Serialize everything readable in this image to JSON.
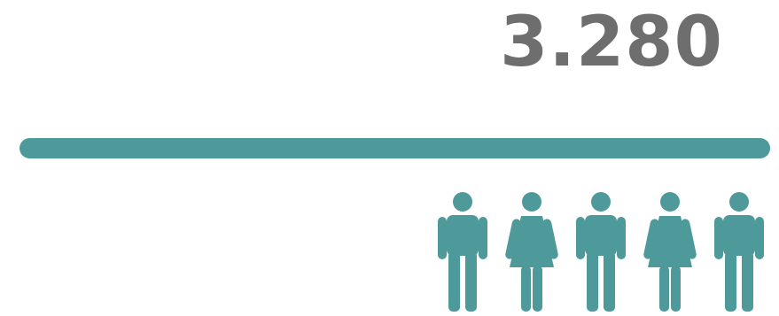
{
  "stat": {
    "value": "3.280"
  },
  "colors": {
    "accent": "#4e9a9b",
    "value_text": "#6e6e6e"
  },
  "icons": [
    {
      "name": "male-person-icon"
    },
    {
      "name": "female-person-icon"
    },
    {
      "name": "male-person-icon"
    },
    {
      "name": "female-person-icon"
    },
    {
      "name": "male-person-icon"
    }
  ]
}
